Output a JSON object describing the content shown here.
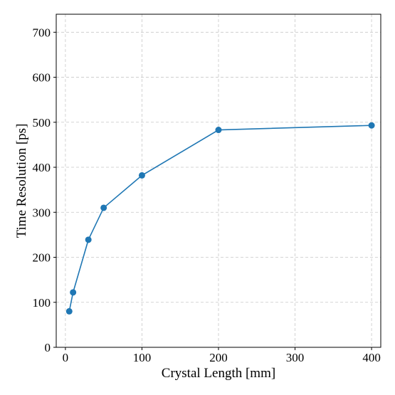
{
  "chart_data": {
    "type": "line",
    "title": "",
    "xlabel": "Crystal Length [mm]",
    "ylabel": "Time Resolution [ps]",
    "xlim": [
      -12,
      412
    ],
    "ylim": [
      0,
      740
    ],
    "xticks": [
      0,
      100,
      200,
      300,
      400
    ],
    "yticks": [
      0,
      100,
      200,
      300,
      400,
      500,
      600,
      700
    ],
    "grid": true,
    "legend": "none",
    "series": [
      {
        "color": "#1f77b4",
        "marker": "circle",
        "x": [
          5,
          10,
          30,
          50,
          100,
          200,
          400
        ],
        "y": [
          80,
          122,
          239,
          310,
          382,
          483,
          493
        ]
      }
    ]
  }
}
